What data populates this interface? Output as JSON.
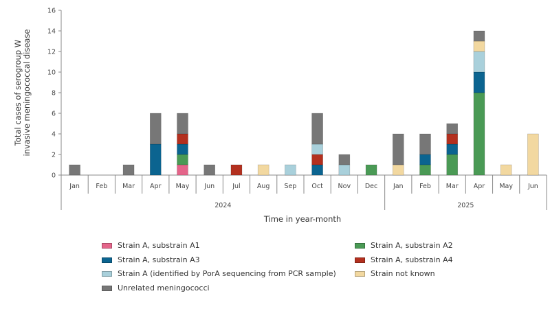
{
  "chart_data": {
    "type": "bar",
    "stacked": true,
    "title": "",
    "xlabel": "Time in year-month",
    "ylabel_lines": [
      "Total cases of serogroup W",
      "invasive meningococcal disease"
    ],
    "ylim": [
      0,
      16
    ],
    "yticks": [
      0,
      2,
      4,
      6,
      8,
      10,
      12,
      14,
      16
    ],
    "grid": false,
    "categories": [
      "Jan",
      "Feb",
      "Mar",
      "Apr",
      "May",
      "Jun",
      "Jul",
      "Aug",
      "Sep",
      "Oct",
      "Nov",
      "Dec",
      "Jan",
      "Feb",
      "Mar",
      "Apr",
      "May",
      "Jun"
    ],
    "year_groups": [
      {
        "label": "2024",
        "start": 0,
        "end": 11
      },
      {
        "label": "2025",
        "start": 12,
        "end": 17
      }
    ],
    "series": [
      {
        "name": "Strain A, substrain A1",
        "color": "#e4658a",
        "values": [
          0,
          0,
          0,
          0,
          1,
          0,
          0,
          0,
          0,
          0,
          0,
          0,
          0,
          0,
          0,
          0,
          0,
          0
        ]
      },
      {
        "name": "Strain A, substrain A2",
        "color": "#4a9a55",
        "values": [
          0,
          0,
          0,
          0,
          1,
          0,
          0,
          0,
          0,
          0,
          0,
          1,
          0,
          1,
          2,
          8,
          0,
          0
        ]
      },
      {
        "name": "Strain A, substrain A3",
        "color": "#0b6490",
        "values": [
          0,
          0,
          0,
          3,
          1,
          0,
          0,
          0,
          0,
          1,
          0,
          0,
          0,
          1,
          1,
          2,
          0,
          0
        ]
      },
      {
        "name": "Strain A, substrain A4",
        "color": "#b3301f",
        "values": [
          0,
          0,
          0,
          0,
          1,
          0,
          1,
          0,
          0,
          1,
          0,
          0,
          0,
          0,
          1,
          0,
          0,
          0
        ]
      },
      {
        "name": "Strain A (identified by PorA sequencing from PCR sample)",
        "color": "#a9d0db",
        "values": [
          0,
          0,
          0,
          0,
          0,
          0,
          0,
          0,
          1,
          1,
          1,
          0,
          0,
          0,
          0,
          2,
          0,
          0
        ]
      },
      {
        "name": "Strain not known",
        "color": "#f2d8a0",
        "values": [
          0,
          0,
          0,
          0,
          0,
          0,
          0,
          1,
          0,
          0,
          0,
          0,
          1,
          0,
          0,
          1,
          1,
          4
        ]
      },
      {
        "name": "Unrelated meningococci",
        "color": "#777777",
        "values": [
          1,
          0,
          1,
          3,
          2,
          1,
          0,
          0,
          0,
          3,
          1,
          0,
          3,
          2,
          1,
          1,
          0,
          0
        ]
      }
    ],
    "legend_order": [
      0,
      1,
      2,
      3,
      4,
      5,
      6
    ]
  }
}
